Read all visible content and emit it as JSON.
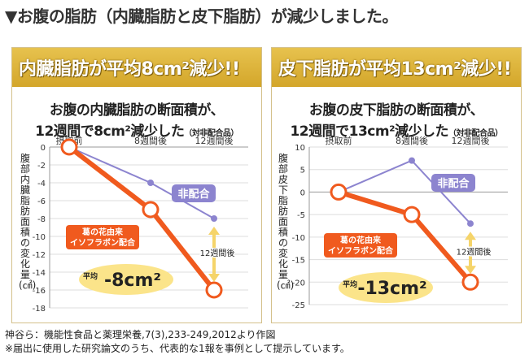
{
  "heading": "▼お腹の脂肪（内臓脂肪と皮下脂肪）が減少しました。",
  "footer": {
    "citation": "神谷ら：機能性食品と薬理栄養,7(3),233-249,2012より作図",
    "note": "※届出に使用した研究論文のうち、代表的な1報を事例として提示しています。"
  },
  "colors": {
    "banner": "#d9ae35",
    "formula": "#f05a1e",
    "non": "#8c84cf",
    "arrow": "#f5d46a"
  },
  "chart_data": [
    {
      "type": "line",
      "banner": "内臓脂肪が平均8cm²減少!!",
      "subtitle_line1": "お腹の内臓脂肪の断面積が、",
      "subtitle_line2": "12週間で8cm²減少した",
      "subtitle_note": "（対非配合品）",
      "ylabel": "腹部内臓脂肪面積の変化量(㎠)",
      "categories": [
        "摂取前",
        "8週間後",
        "12週間後"
      ],
      "ylim": [
        -18,
        0
      ],
      "yticks": [
        "0",
        "-2",
        "-4",
        "-6",
        "-8",
        "-10",
        "-12",
        "-14",
        "-16",
        "-18"
      ],
      "series": [
        {
          "name": "葛の花由来イソフラボン配合",
          "values": [
            0,
            -7,
            -16
          ]
        },
        {
          "name": "非配合",
          "values": [
            0,
            -4,
            -8
          ]
        }
      ],
      "annotations": {
        "formula_label": "葛の花由来\nイソフラボン配合",
        "non_label": "非配合",
        "period": "12週間後",
        "avg_prefix": "平均",
        "avg_value": "-8cm²"
      }
    },
    {
      "type": "line",
      "banner": "皮下脂肪が平均13cm²減少!!",
      "subtitle_line1": "お腹の皮下脂肪の断面積が、",
      "subtitle_line2": "12週間で13cm²減少した",
      "subtitle_note": "（対非配合品）",
      "ylabel": "腹部皮下脂肪面積の変化量(㎠)",
      "categories": [
        "摂取前",
        "8週間後",
        "12週間後"
      ],
      "ylim": [
        -25,
        10
      ],
      "yticks": [
        "10",
        "5",
        "0",
        "-5",
        "-10",
        "-15",
        "-20",
        "-25"
      ],
      "series": [
        {
          "name": "葛の花由来イソフラボン配合",
          "values": [
            0,
            -5,
            -20
          ]
        },
        {
          "name": "非配合",
          "values": [
            0,
            7,
            -7
          ]
        }
      ],
      "annotations": {
        "formula_label": "葛の花由来\nイソフラボン配合",
        "non_label": "非配合",
        "period": "12週間後",
        "avg_prefix": "平均",
        "avg_value": "-13cm²"
      }
    }
  ]
}
